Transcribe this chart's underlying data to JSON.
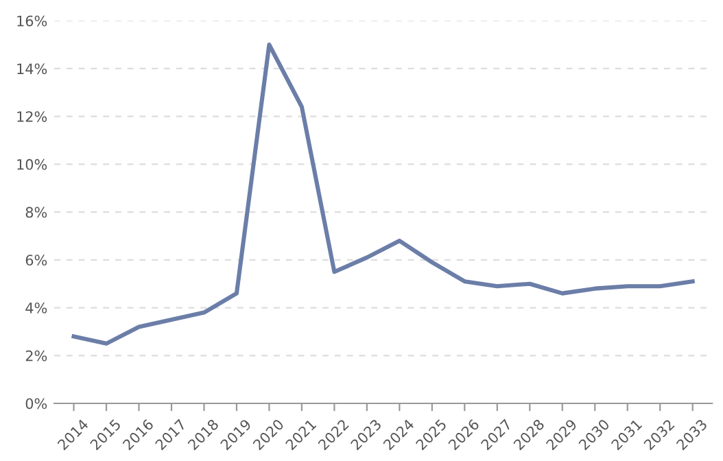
{
  "chart_data": {
    "type": "line",
    "categories": [
      "2014",
      "2015",
      "2016",
      "2017",
      "2018",
      "2019",
      "2020",
      "2021",
      "2022",
      "2023",
      "2024",
      "2025",
      "2026",
      "2027",
      "2028",
      "2029",
      "2030",
      "2031",
      "2032",
      "2033"
    ],
    "series": [
      {
        "color": "#6b7ea8",
        "values": [
          2.8,
          2.5,
          3.2,
          3.5,
          3.8,
          4.6,
          15.0,
          12.4,
          5.5,
          6.1,
          6.8,
          5.9,
          5.1,
          4.9,
          5.0,
          4.6,
          4.8,
          4.9,
          4.9,
          5.1
        ]
      }
    ],
    "ylim": [
      0,
      16
    ],
    "yticks": [
      {
        "value": 0,
        "label": "0%"
      },
      {
        "value": 2,
        "label": "2%"
      },
      {
        "value": 4,
        "label": "4%"
      },
      {
        "value": 6,
        "label": "6%"
      },
      {
        "value": 8,
        "label": "8%"
      },
      {
        "value": 10,
        "label": "10%"
      },
      {
        "value": 12,
        "label": "12%"
      },
      {
        "value": 14,
        "label": "14%"
      },
      {
        "value": 16,
        "label": "16%"
      }
    ],
    "grid": "y",
    "marker": "none",
    "line_style": "solid"
  }
}
